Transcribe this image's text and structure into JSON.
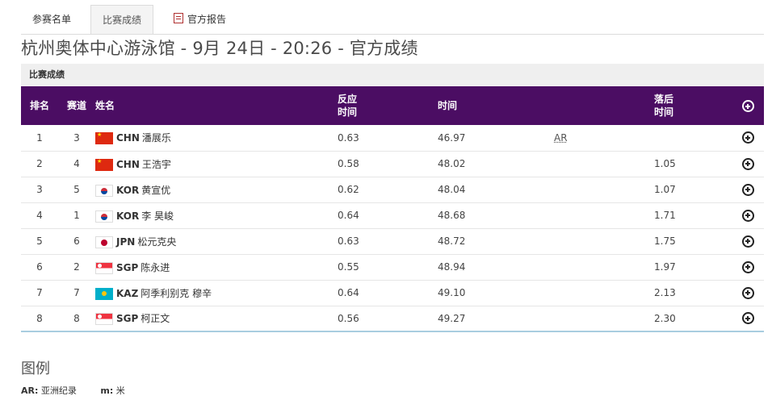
{
  "tabs": [
    {
      "label": "参赛名单",
      "active": false
    },
    {
      "label": "比赛成绩",
      "active": true
    },
    {
      "label": "官方报告",
      "active": false,
      "icon": "report-doc-icon"
    }
  ],
  "page_title": "杭州奥体中心游泳馆 - 9月 24日 - 20:26 - 官方成绩",
  "section_title": "比赛成绩",
  "columns": {
    "rank": "排名",
    "lane": "赛道",
    "name": "姓名",
    "reaction_line1": "反应",
    "reaction_line2": "时间",
    "time": "时间",
    "behind_line1": "落后",
    "behind_line2": "时间"
  },
  "rows": [
    {
      "rank": "1",
      "lane": "3",
      "flag": "chn",
      "noc": "CHN",
      "name": "潘展乐",
      "reaction": "0.63",
      "time": "46.97",
      "record": "AR",
      "behind": ""
    },
    {
      "rank": "2",
      "lane": "4",
      "flag": "chn",
      "noc": "CHN",
      "name": "王浩宇",
      "reaction": "0.58",
      "time": "48.02",
      "record": "",
      "behind": "1.05"
    },
    {
      "rank": "3",
      "lane": "5",
      "flag": "kor",
      "noc": "KOR",
      "name": "黄宣优",
      "reaction": "0.62",
      "time": "48.04",
      "record": "",
      "behind": "1.07"
    },
    {
      "rank": "4",
      "lane": "1",
      "flag": "kor",
      "noc": "KOR",
      "name": "李 昊峻",
      "reaction": "0.64",
      "time": "48.68",
      "record": "",
      "behind": "1.71"
    },
    {
      "rank": "5",
      "lane": "6",
      "flag": "jpn",
      "noc": "JPN",
      "name": "松元克央",
      "reaction": "0.63",
      "time": "48.72",
      "record": "",
      "behind": "1.75"
    },
    {
      "rank": "6",
      "lane": "2",
      "flag": "sgp",
      "noc": "SGP",
      "name": "陈永进",
      "reaction": "0.55",
      "time": "48.94",
      "record": "",
      "behind": "1.97"
    },
    {
      "rank": "7",
      "lane": "7",
      "flag": "kaz",
      "noc": "KAZ",
      "name": "阿季利别克 穆辛",
      "reaction": "0.64",
      "time": "49.10",
      "record": "",
      "behind": "2.13"
    },
    {
      "rank": "8",
      "lane": "8",
      "flag": "sgp",
      "noc": "SGP",
      "name": "柯正文",
      "reaction": "0.56",
      "time": "49.27",
      "record": "",
      "behind": "2.30"
    }
  ],
  "legend": {
    "title": "图例",
    "items": [
      {
        "key": "AR:",
        "desc": "亚洲纪录"
      },
      {
        "key": "m:",
        "desc": "米"
      }
    ]
  },
  "colors": {
    "header_bg": "#4b0d63",
    "bottom_rule": "#a9cde0"
  }
}
